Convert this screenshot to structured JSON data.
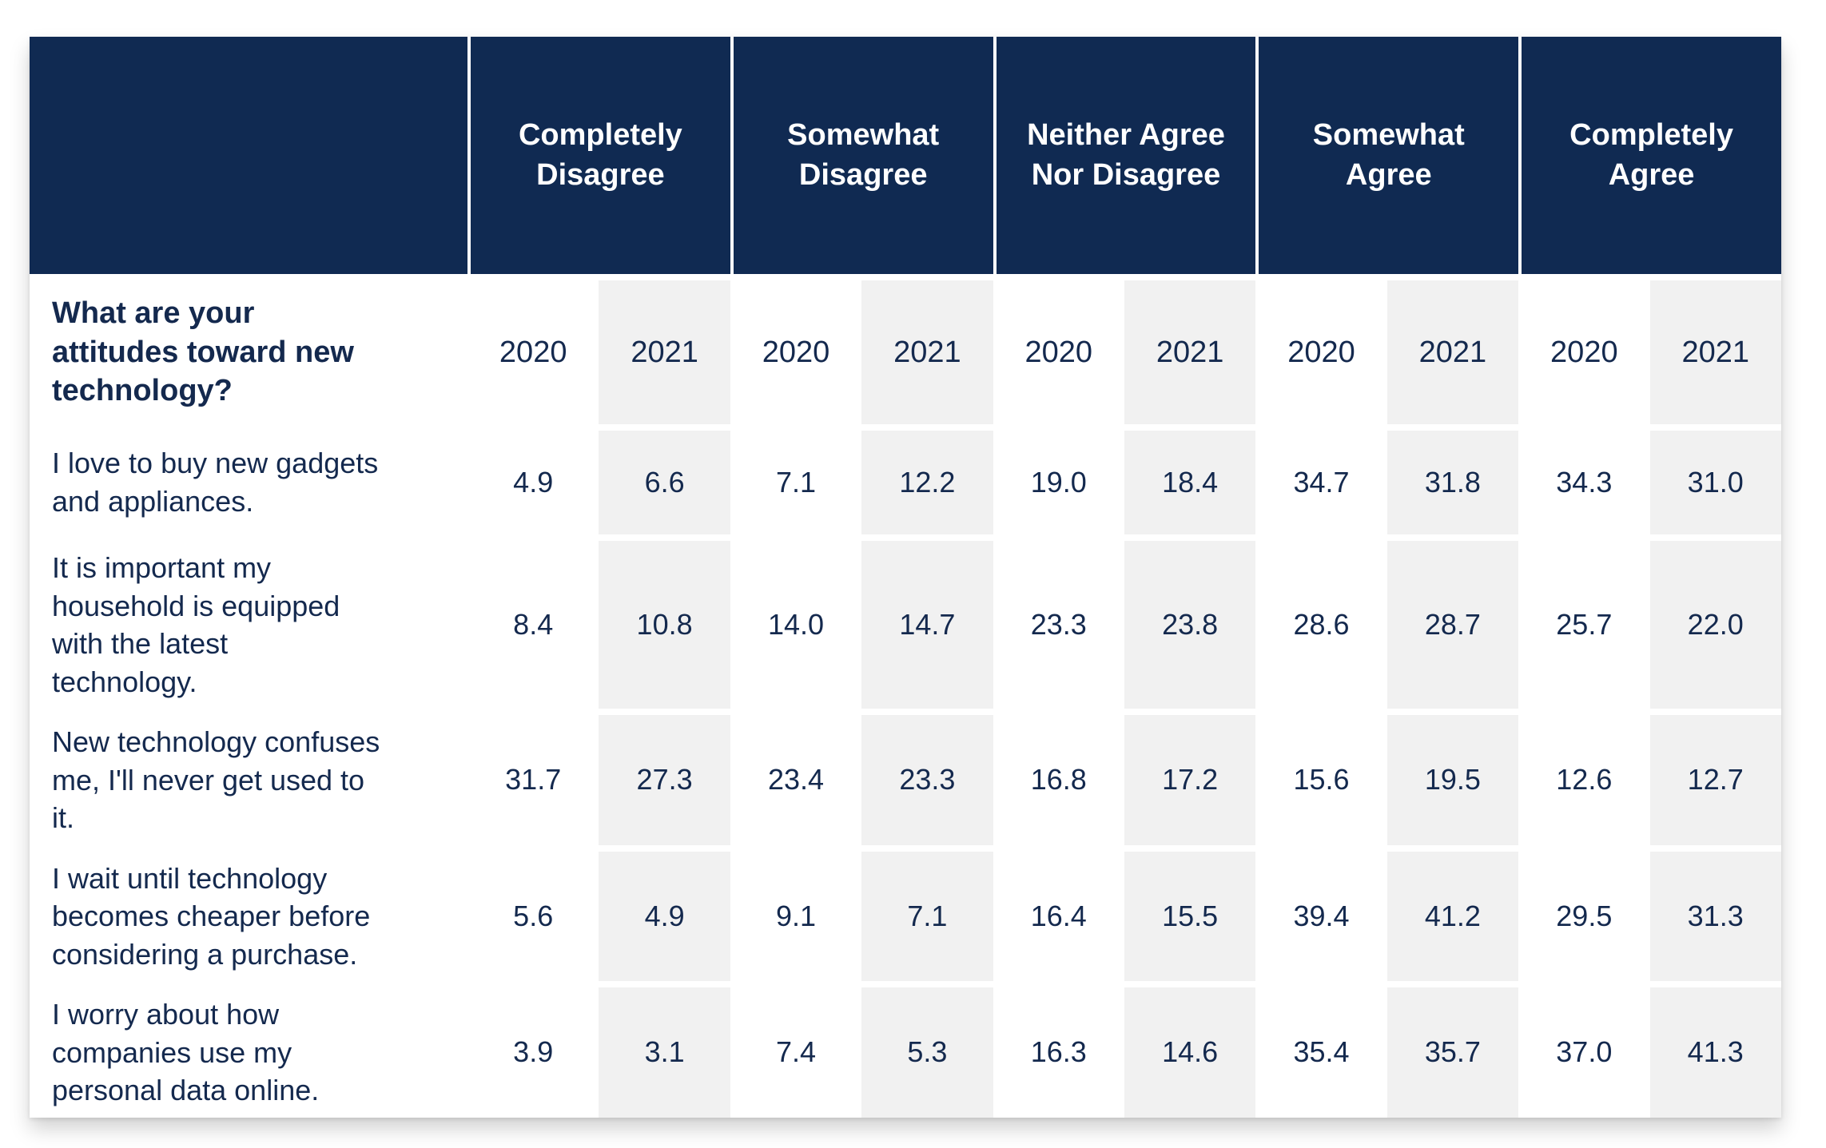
{
  "table": {
    "question": "What are your\nattitudes toward new\ntechnology?",
    "groups": [
      "Completely\nDisagree",
      "Somewhat\nDisagree",
      "Neither Agree\nNor Disagree",
      "Somewhat\nAgree",
      "Completely\nAgree"
    ],
    "year_labels": [
      "2020",
      "2021"
    ],
    "rows": [
      {
        "label": "I love to buy new gadgets\nand appliances.",
        "values": [
          "4.9",
          "6.6",
          "7.1",
          "12.2",
          "19.0",
          "18.4",
          "34.7",
          "31.8",
          "34.3",
          "31.0"
        ]
      },
      {
        "label": "It is important my\nhousehold is equipped\nwith the latest\ntechnology.",
        "values": [
          "8.4",
          "10.8",
          "14.0",
          "14.7",
          "23.3",
          "23.8",
          "28.6",
          "28.7",
          "25.7",
          "22.0"
        ]
      },
      {
        "label": "New technology confuses\nme, I'll never get used to\nit.",
        "values": [
          "31.7",
          "27.3",
          "23.4",
          "23.3",
          "16.8",
          "17.2",
          "15.6",
          "19.5",
          "12.6",
          "12.7"
        ]
      },
      {
        "label": "I wait until technology\nbecomes cheaper before\nconsidering a purchase.",
        "values": [
          "5.6",
          "4.9",
          "9.1",
          "7.1",
          "16.4",
          "15.5",
          "39.4",
          "41.2",
          "29.5",
          "31.3"
        ]
      },
      {
        "label": "I worry about how\ncompanies use my\npersonal data online.",
        "values": [
          "3.9",
          "3.1",
          "7.4",
          "5.3",
          "16.3",
          "14.6",
          "35.4",
          "35.7",
          "37.0",
          "41.3"
        ]
      }
    ]
  },
  "colors": {
    "header_bg": "#102A52",
    "body_text": "#14294E",
    "stripe": "#F1F1F1"
  },
  "chart_data": {
    "type": "table",
    "title": "What are your attitudes toward new technology?",
    "categories": [
      "Completely Disagree",
      "Somewhat Disagree",
      "Neither Agree Nor Disagree",
      "Somewhat Agree",
      "Completely Agree"
    ],
    "years": [
      "2020",
      "2021"
    ],
    "rows": [
      {
        "statement": "I love to buy new gadgets and appliances.",
        "2020": [
          4.9,
          7.1,
          19.0,
          34.7,
          34.3
        ],
        "2021": [
          6.6,
          12.2,
          18.4,
          31.8,
          31.0
        ]
      },
      {
        "statement": "It is important my household is equipped with the latest technology.",
        "2020": [
          8.4,
          14.0,
          23.3,
          28.6,
          25.7
        ],
        "2021": [
          10.8,
          14.7,
          23.8,
          28.7,
          22.0
        ]
      },
      {
        "statement": "New technology confuses me, I'll never get used to it.",
        "2020": [
          31.7,
          23.4,
          16.8,
          15.6,
          12.6
        ],
        "2021": [
          27.3,
          23.3,
          17.2,
          19.5,
          12.7
        ]
      },
      {
        "statement": "I wait until technology becomes cheaper before considering a purchase.",
        "2020": [
          5.6,
          9.1,
          16.4,
          39.4,
          29.5
        ],
        "2021": [
          4.9,
          7.1,
          15.5,
          41.2,
          31.3
        ]
      },
      {
        "statement": "I worry about how companies use my personal data online.",
        "2020": [
          3.9,
          7.4,
          16.3,
          35.4,
          37.0
        ],
        "2021": [
          3.1,
          5.3,
          14.6,
          35.7,
          41.3
        ]
      }
    ]
  }
}
